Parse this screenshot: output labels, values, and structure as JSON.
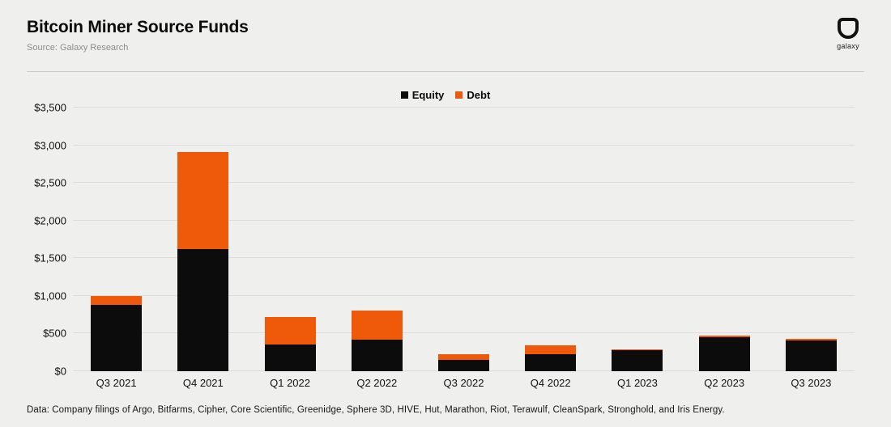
{
  "header": {
    "title": "Bitcoin Miner Source Funds",
    "subtitle": "Source: Galaxy Research",
    "logo_text": "galaxy"
  },
  "footer": {
    "note": "Data: Company filings of Argo, Bitfarms, Cipher, Core Scientific, Greenidge, Sphere 3D, HIVE, Hut, Marathon, Riot, Terawulf, CleanSpark, Stronghold, and Iris Energy."
  },
  "colors": {
    "equity": "#0d0c0d",
    "debt": "#ee5a0a",
    "background": "#efefed",
    "gridline": "#dcdcda"
  },
  "chart_data": {
    "type": "bar",
    "stacked": true,
    "title": "Bitcoin Miner Source Funds",
    "categories": [
      "Q3 2021",
      "Q4 2021",
      "Q1 2022",
      "Q2 2022",
      "Q3 2022",
      "Q4 2022",
      "Q1 2023",
      "Q2 2023",
      "Q3 2023"
    ],
    "series": [
      {
        "name": "Equity",
        "color": "#0d0c0d",
        "values": [
          885,
          1620,
          350,
          420,
          155,
          225,
          275,
          450,
          405
        ]
      },
      {
        "name": "Debt",
        "color": "#ee5a0a",
        "values": [
          115,
          1290,
          365,
          390,
          75,
          120,
          10,
          25,
          25
        ]
      }
    ],
    "ylim": [
      0,
      3500
    ],
    "ytick_interval": 500,
    "yticks": [
      {
        "value": 0,
        "label": "$0"
      },
      {
        "value": 500,
        "label": "$500"
      },
      {
        "value": 1000,
        "label": "$1,000"
      },
      {
        "value": 1500,
        "label": "$1,500"
      },
      {
        "value": 2000,
        "label": "$2,000"
      },
      {
        "value": 2500,
        "label": "$2,500"
      },
      {
        "value": 3000,
        "label": "$3,000"
      },
      {
        "value": 3500,
        "label": "$3,500"
      }
    ],
    "legend_position": "top-center",
    "grid": "horizontal"
  }
}
